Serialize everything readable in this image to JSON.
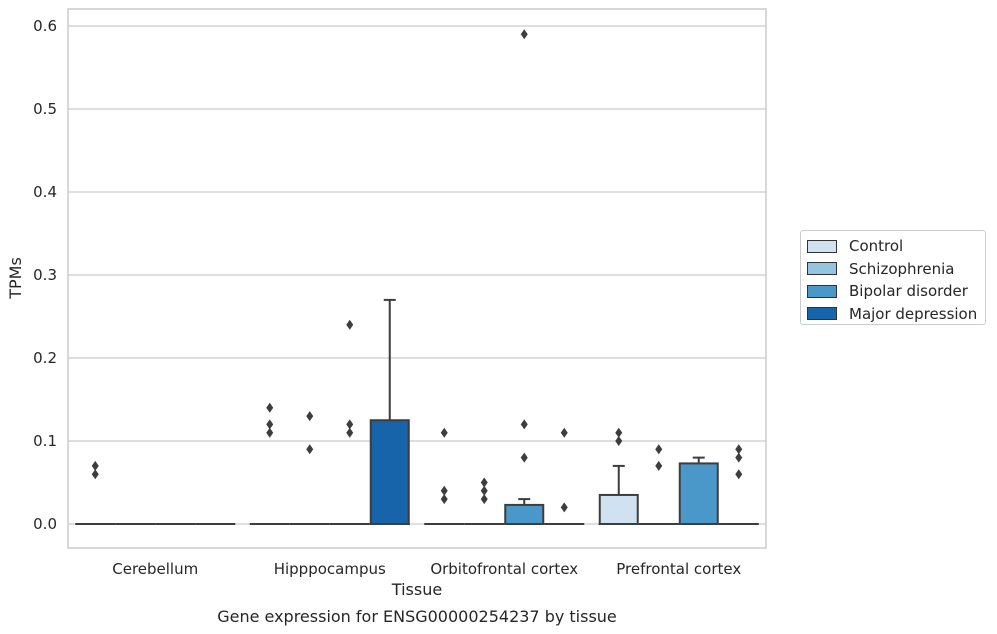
{
  "chart_data": {
    "type": "box",
    "xlabel": "Tissue",
    "ylabel": "TPMs",
    "caption": "Gene expression for ENSG00000254237 by tissue",
    "ylim": [
      -0.03,
      0.62
    ],
    "yticks": [
      "0.0",
      "0.1",
      "0.2",
      "0.3",
      "0.4",
      "0.5",
      "0.6"
    ],
    "grid": "horizontal",
    "legend_position": "right",
    "categories": [
      "Cerebellum",
      "Hipppocampus",
      "Orbitofrontal cortex",
      "Prefrontal cortex"
    ],
    "series": [
      {
        "name": "Control",
        "color": "#d0e1f2",
        "boxes": [
          {
            "q1": 0,
            "median": 0,
            "q3": 0,
            "whisker_low": 0,
            "whisker_high": 0,
            "outliers": [
              0.07,
              0.06
            ]
          },
          {
            "q1": 0,
            "median": 0,
            "q3": 0,
            "whisker_low": 0,
            "whisker_high": 0,
            "outliers": [
              0.14,
              0.12,
              0.11
            ]
          },
          {
            "q1": 0,
            "median": 0,
            "q3": 0,
            "whisker_low": 0,
            "whisker_high": 0,
            "outliers": [
              0.11,
              0.04,
              0.03
            ]
          },
          {
            "q1": 0,
            "median": 0,
            "q3": 0.035,
            "whisker_low": 0,
            "whisker_high": 0.07,
            "outliers": [
              0.11,
              0.1
            ]
          }
        ]
      },
      {
        "name": "Schizophrenia",
        "color": "#94c4df",
        "boxes": [
          {
            "q1": 0,
            "median": 0,
            "q3": 0,
            "whisker_low": 0,
            "whisker_high": 0,
            "outliers": []
          },
          {
            "q1": 0,
            "median": 0,
            "q3": 0,
            "whisker_low": 0,
            "whisker_high": 0,
            "outliers": [
              0.13,
              0.09
            ]
          },
          {
            "q1": 0,
            "median": 0,
            "q3": 0,
            "whisker_low": 0,
            "whisker_high": 0,
            "outliers": [
              0.05,
              0.04,
              0.03
            ]
          },
          {
            "q1": 0,
            "median": 0,
            "q3": 0,
            "whisker_low": 0,
            "whisker_high": 0,
            "outliers": [
              0.09,
              0.07
            ]
          }
        ]
      },
      {
        "name": "Bipolar disorder",
        "color": "#4a98c9",
        "boxes": [
          {
            "q1": 0,
            "median": 0,
            "q3": 0,
            "whisker_low": 0,
            "whisker_high": 0,
            "outliers": []
          },
          {
            "q1": 0,
            "median": 0,
            "q3": 0,
            "whisker_low": 0,
            "whisker_high": 0,
            "outliers": [
              0.24,
              0.12,
              0.11
            ]
          },
          {
            "q1": 0,
            "median": 0,
            "q3": 0.023,
            "whisker_low": 0,
            "whisker_high": 0.03,
            "outliers": [
              0.59,
              0.12,
              0.08
            ]
          },
          {
            "q1": 0,
            "median": 0,
            "q3": 0.073,
            "whisker_low": 0,
            "whisker_high": 0.08,
            "outliers": []
          }
        ]
      },
      {
        "name": "Major depression",
        "color": "#1764ab",
        "boxes": [
          {
            "q1": 0,
            "median": 0,
            "q3": 0,
            "whisker_low": 0,
            "whisker_high": 0,
            "outliers": []
          },
          {
            "q1": 0,
            "median": 0,
            "q3": 0.125,
            "whisker_low": 0,
            "whisker_high": 0.27,
            "outliers": []
          },
          {
            "q1": 0,
            "median": 0,
            "q3": 0,
            "whisker_low": 0,
            "whisker_high": 0,
            "outliers": [
              0.11,
              0.02
            ]
          },
          {
            "q1": 0,
            "median": 0,
            "q3": 0,
            "whisker_low": 0,
            "whisker_high": 0,
            "outliers": [
              0.09,
              0.08,
              0.06
            ]
          }
        ]
      }
    ]
  }
}
